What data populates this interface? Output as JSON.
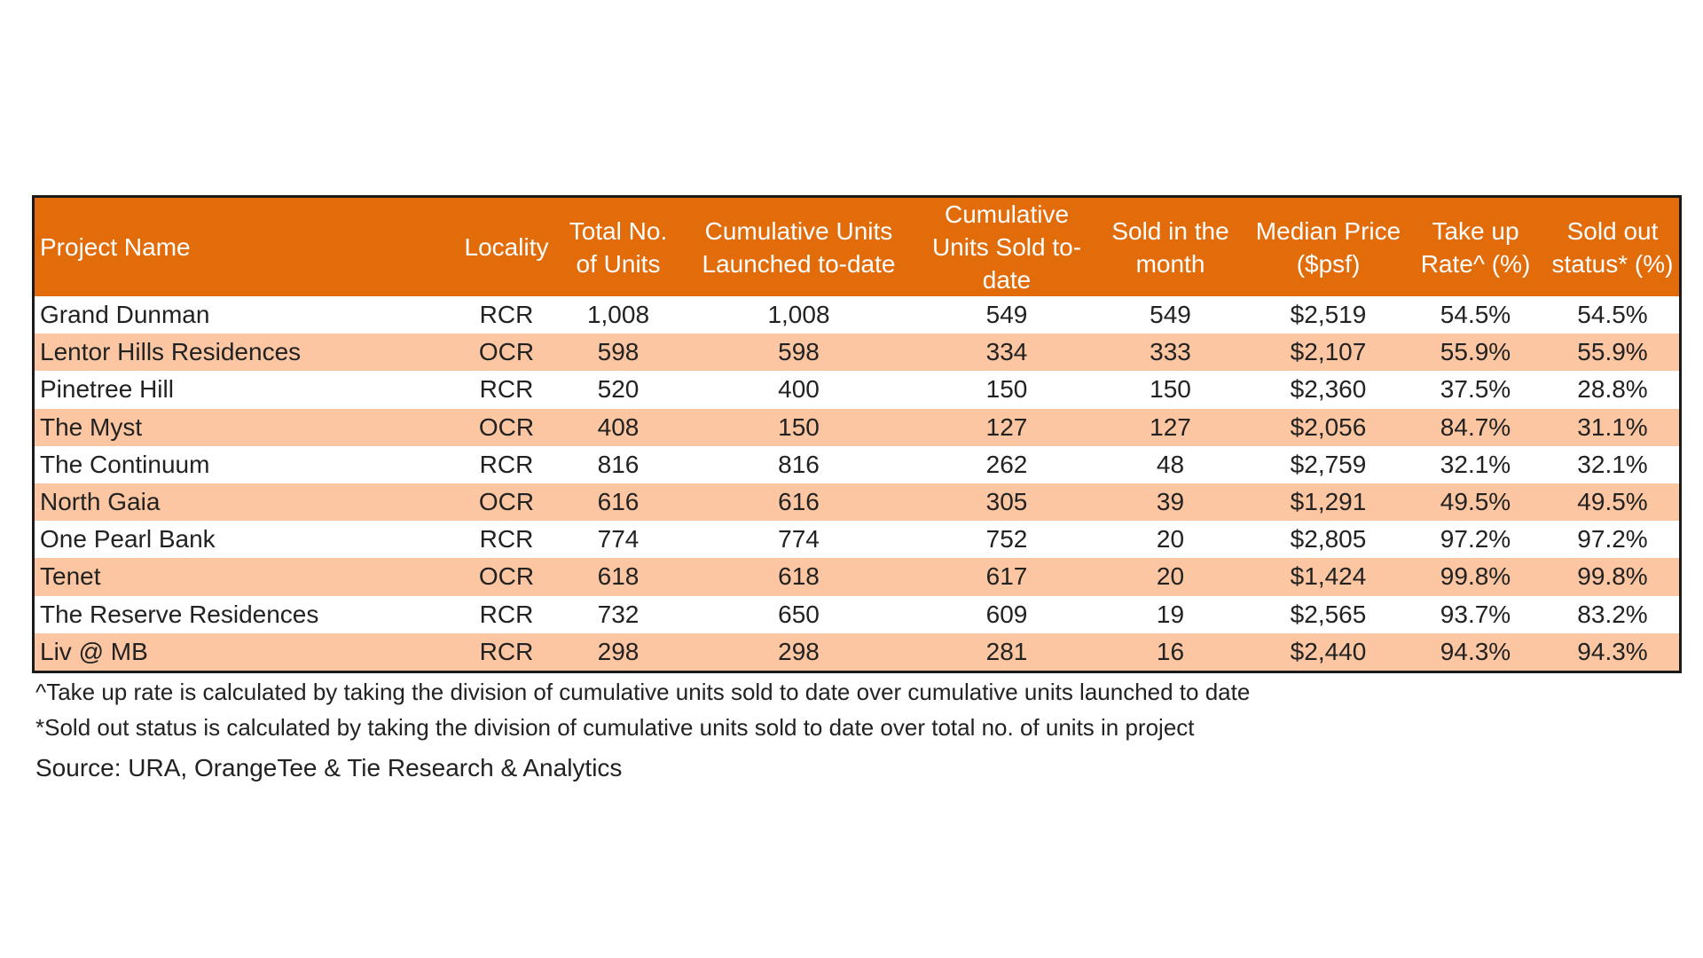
{
  "table": {
    "headers": [
      "Project Name",
      "Locality",
      "Total No. of Units",
      "Cumulative Units Launched to-date",
      "Cumulative Units Sold to-date",
      "Sold in the month",
      "Median Price ($psf)",
      "Take up Rate^ (%)",
      "Sold out status* (%)"
    ],
    "rows": [
      [
        "Grand Dunman",
        "RCR",
        "1,008",
        "1,008",
        "549",
        "549",
        "$2,519",
        "54.5%",
        "54.5%"
      ],
      [
        "Lentor Hills Residences",
        "OCR",
        "598",
        "598",
        "334",
        "333",
        "$2,107",
        "55.9%",
        "55.9%"
      ],
      [
        "Pinetree Hill",
        "RCR",
        "520",
        "400",
        "150",
        "150",
        "$2,360",
        "37.5%",
        "28.8%"
      ],
      [
        "The Myst",
        "OCR",
        "408",
        "150",
        "127",
        "127",
        "$2,056",
        "84.7%",
        "31.1%"
      ],
      [
        "The Continuum",
        "RCR",
        "816",
        "816",
        "262",
        "48",
        "$2,759",
        "32.1%",
        "32.1%"
      ],
      [
        "North Gaia",
        "OCR",
        "616",
        "616",
        "305",
        "39",
        "$1,291",
        "49.5%",
        "49.5%"
      ],
      [
        "One Pearl Bank",
        "RCR",
        "774",
        "774",
        "752",
        "20",
        "$2,805",
        "97.2%",
        "97.2%"
      ],
      [
        "Tenet",
        "OCR",
        "618",
        "618",
        "617",
        "20",
        "$1,424",
        "99.8%",
        "99.8%"
      ],
      [
        "The Reserve Residences",
        "RCR",
        "732",
        "650",
        "609",
        "19",
        "$2,565",
        "93.7%",
        "83.2%"
      ],
      [
        "Liv @ MB",
        "RCR",
        "298",
        "298",
        "281",
        "16",
        "$2,440",
        "94.3%",
        "94.3%"
      ]
    ]
  },
  "notes": {
    "take_up_note": "^Take up rate is calculated by taking the division of cumulative units sold to date over cumulative units launched to date",
    "sold_out_note": "*Sold out status is calculated by taking the division of cumulative units sold to date over total no. of units in project",
    "source": "Source: URA, OrangeTee & Tie Research & Analytics"
  },
  "colors": {
    "header_bg": "#e36c0a",
    "header_text": "#ffffff",
    "stripe_bg": "#fbc6a1",
    "row_bg": "#ffffff",
    "border": "#1a1a1a"
  }
}
